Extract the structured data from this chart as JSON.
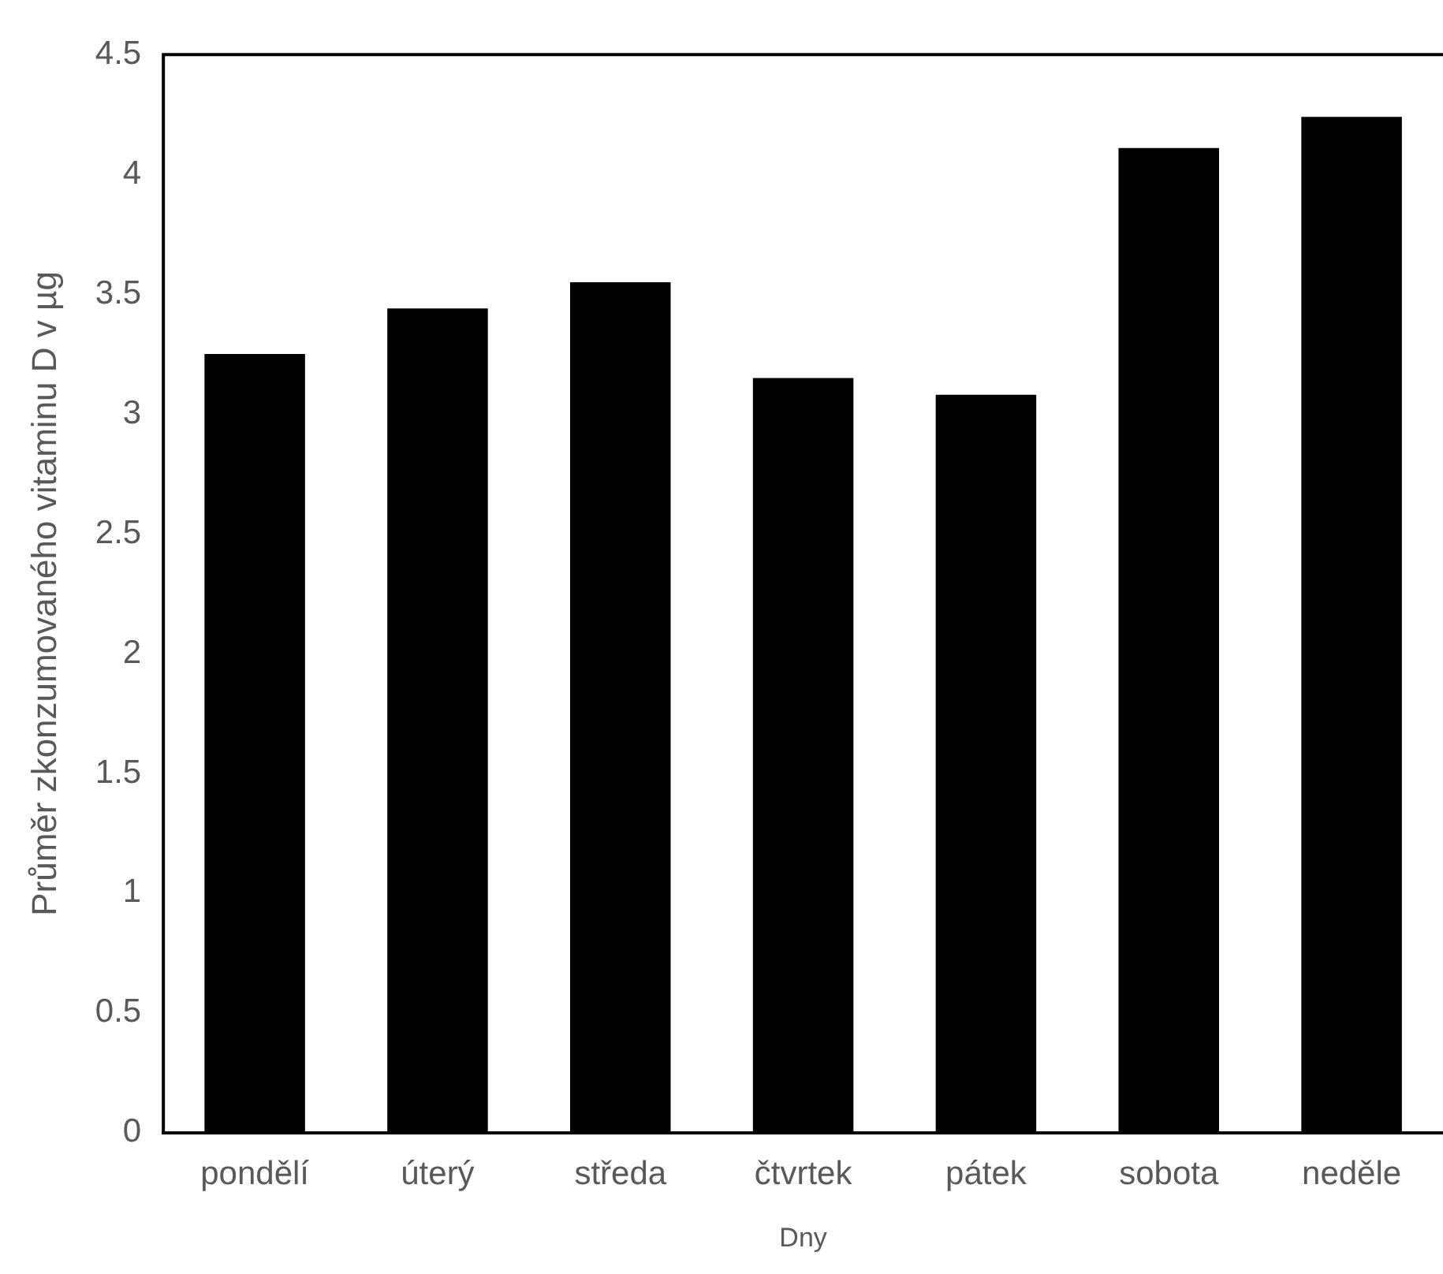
{
  "chart_data": {
    "type": "bar",
    "xlabel": "Dny",
    "ylabel": "Průměr zkonzumovaného vitaminu D v µg",
    "categories": [
      "pondělí",
      "úterý",
      "středa",
      "čtvrtek",
      "pátek",
      "sobota",
      "neděle"
    ],
    "values": [
      3.25,
      3.44,
      3.55,
      3.15,
      3.08,
      4.11,
      4.24
    ],
    "color": "#000000",
    "ylim": [
      0,
      4.5
    ],
    "yticks": [
      0,
      0.5,
      1,
      1.5,
      2,
      2.5,
      3,
      3.5,
      4,
      4.5
    ],
    "grid": false
  }
}
